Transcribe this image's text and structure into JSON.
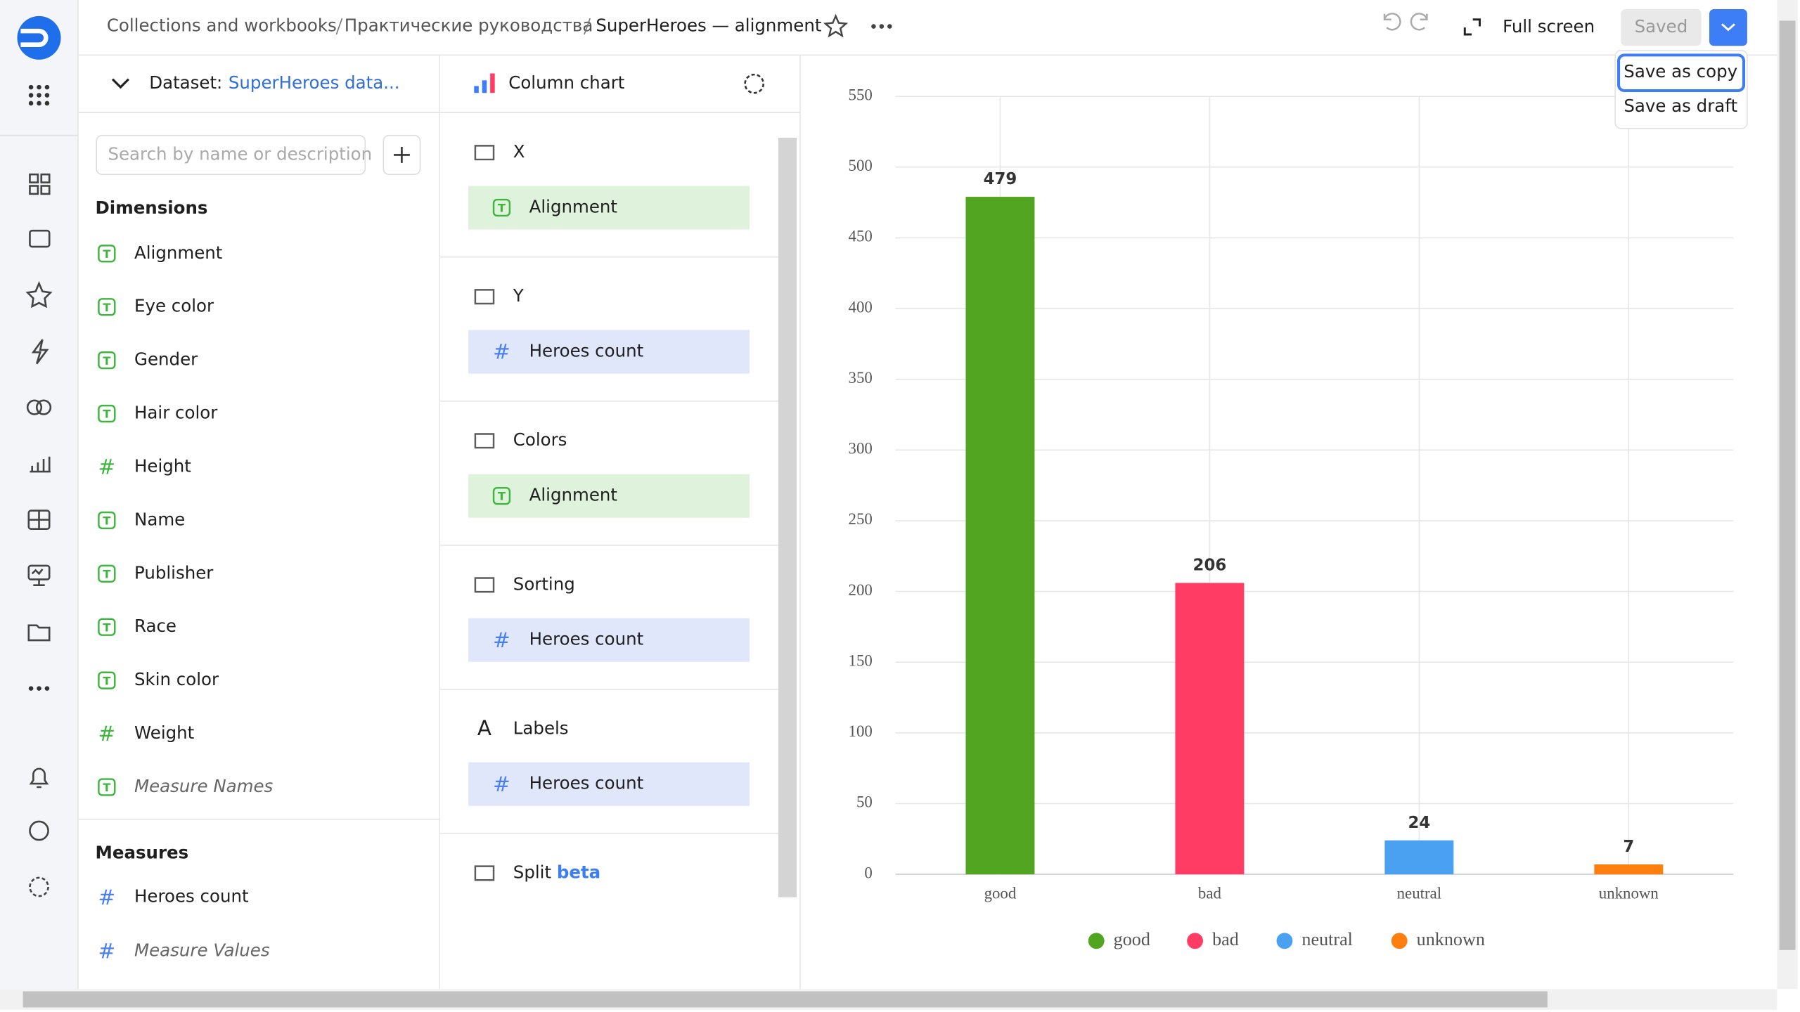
{
  "header": {
    "breadcrumbs": [
      "Collections and workbooks",
      "Практические руководства",
      "SuperHeroes — alignment"
    ],
    "full_screen": "Full screen",
    "saved": "Saved"
  },
  "save_menu": [
    "Save as copy",
    "Save as draft"
  ],
  "dataset_panel": {
    "label": "Dataset:",
    "dataset": "SuperHeroes data...",
    "search_placeholder": "Search by name or description",
    "dimensions_title": "Dimensions",
    "dimensions": [
      {
        "icon": "T",
        "name": "Alignment"
      },
      {
        "icon": "T",
        "name": "Eye color"
      },
      {
        "icon": "T",
        "name": "Gender"
      },
      {
        "icon": "T",
        "name": "Hair color"
      },
      {
        "icon": "#",
        "name": "Height"
      },
      {
        "icon": "T",
        "name": "Name"
      },
      {
        "icon": "T",
        "name": "Publisher"
      },
      {
        "icon": "T",
        "name": "Race"
      },
      {
        "icon": "T",
        "name": "Skin color"
      },
      {
        "icon": "#",
        "name": "Weight"
      },
      {
        "icon": "T",
        "name": "Measure Names"
      }
    ],
    "measures_title": "Measures",
    "measures": [
      {
        "icon": "#",
        "name": "Heroes count"
      },
      {
        "icon": "#",
        "name": "Measure Values"
      }
    ]
  },
  "sections_panel": {
    "chart_type": "Column chart",
    "sections": [
      {
        "title": "X",
        "field": {
          "icon": "T",
          "name": "Alignment"
        }
      },
      {
        "title": "Y",
        "field": {
          "icon": "#",
          "name": "Heroes count"
        }
      },
      {
        "title": "Colors",
        "field": {
          "icon": "T",
          "name": "Alignment"
        }
      },
      {
        "title": "Sorting",
        "field": {
          "icon": "#",
          "name": "Heroes count"
        }
      },
      {
        "title": "Labels",
        "icon": "A",
        "field": {
          "icon": "#",
          "name": "Heroes count"
        }
      },
      {
        "title": "Split",
        "badge": "beta"
      }
    ]
  },
  "chart_data": {
    "type": "bar",
    "categories": [
      "good",
      "bad",
      "neutral",
      "unknown"
    ],
    "values": [
      479,
      206,
      24,
      7
    ],
    "colors": [
      "#52a521",
      "#ff3d64",
      "#4aa1f2",
      "#ff7f0e"
    ],
    "ylim": [
      0,
      550
    ],
    "yticks": [
      0,
      50,
      100,
      150,
      200,
      250,
      300,
      350,
      400,
      450,
      500,
      550
    ],
    "grid": true,
    "data_labels": true,
    "legend": "bottom"
  }
}
